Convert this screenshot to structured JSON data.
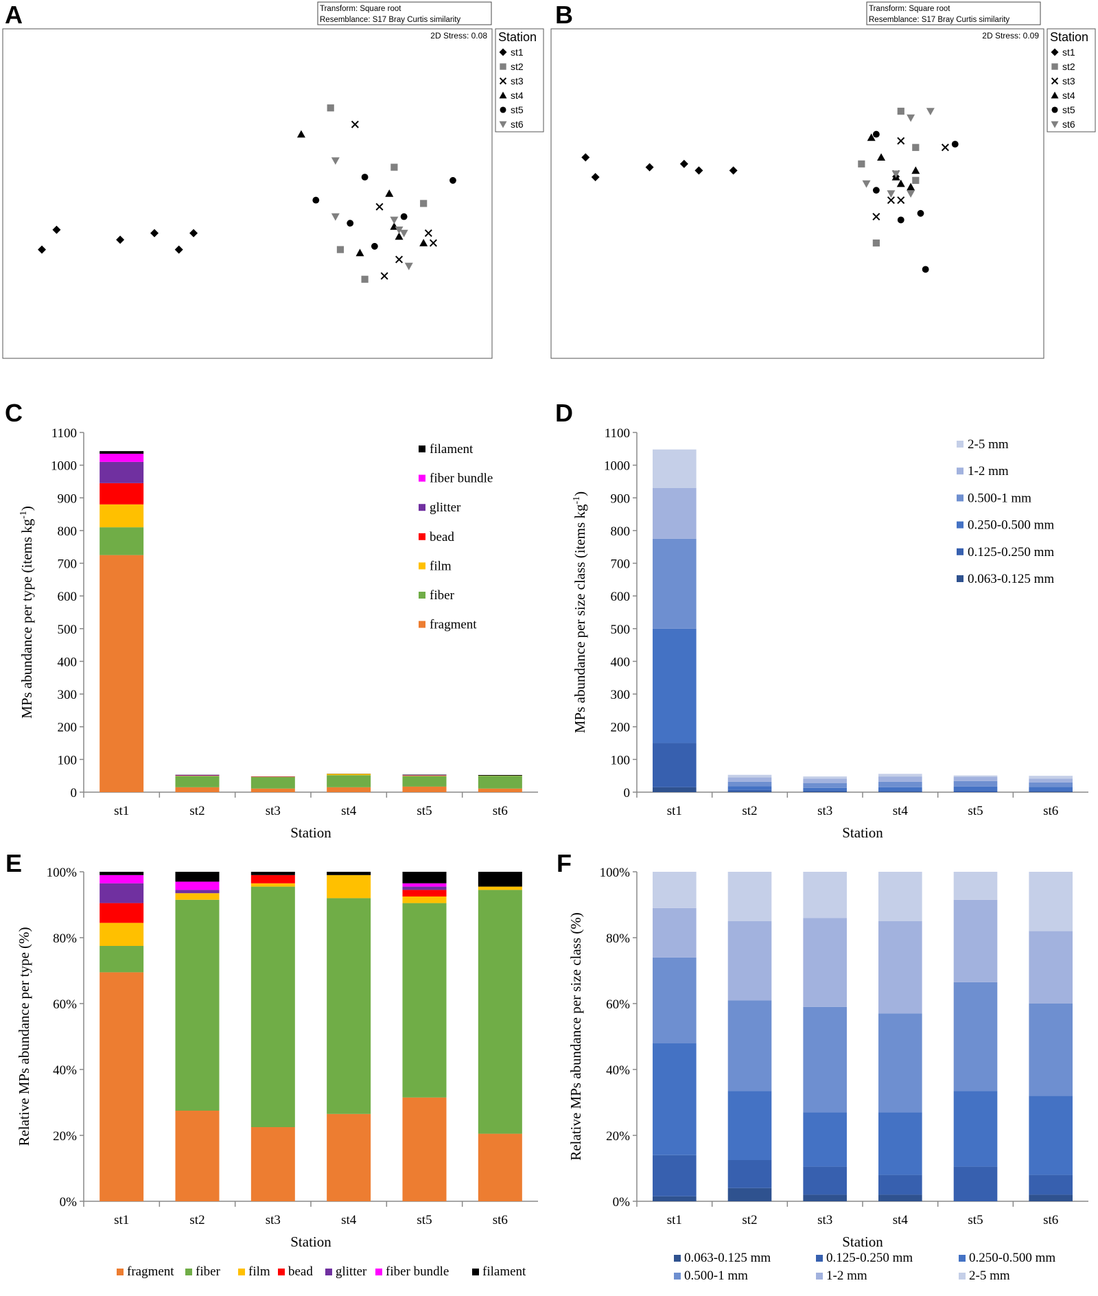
{
  "panel_labels": [
    "A",
    "B",
    "C",
    "D",
    "E",
    "F"
  ],
  "station_names": [
    "st1",
    "st2",
    "st3",
    "st4",
    "st5",
    "st6"
  ],
  "nmds": {
    "legend_title": "Station",
    "header_line1": "Transform: Square root",
    "header_line2": "Resemblance: S17 Bray Curtis similarity",
    "symbols": {
      "st1": "diamond",
      "st2": "square",
      "st3": "cross",
      "st4": "triangle",
      "st5": "circle",
      "st6": "triangle-down"
    },
    "colors": {
      "st1": "#000000",
      "st2": "#808080",
      "st3": "#000000",
      "st4": "#000000",
      "st5": "#000000",
      "st6": "#808080"
    }
  },
  "chart_data": [
    {
      "panel": "A",
      "type": "scatter",
      "title": "",
      "stress_label": "2D Stress: 0.08",
      "xlabel": "",
      "ylabel": "",
      "xlim": [
        0,
        100
      ],
      "ylim": [
        0,
        100
      ],
      "series": [
        {
          "name": "st1",
          "points": [
            [
              8,
              33
            ],
            [
              11,
              39
            ],
            [
              24,
              36
            ],
            [
              31,
              38
            ],
            [
              36,
              33
            ],
            [
              39,
              38
            ]
          ]
        },
        {
          "name": "st2",
          "points": [
            [
              67,
              76
            ],
            [
              80,
              58
            ],
            [
              86,
              47
            ],
            [
              69,
              33
            ],
            [
              74,
              24
            ]
          ]
        },
        {
          "name": "st3",
          "points": [
            [
              72,
              71
            ],
            [
              77,
              46
            ],
            [
              81,
              30
            ],
            [
              88,
              35
            ],
            [
              87,
              38
            ],
            [
              78,
              25
            ]
          ]
        },
        {
          "name": "st4",
          "points": [
            [
              61,
              68
            ],
            [
              79,
              50
            ],
            [
              80,
              40
            ],
            [
              81,
              37
            ],
            [
              73,
              32
            ],
            [
              86,
              35
            ]
          ]
        },
        {
          "name": "st5",
          "points": [
            [
              74,
              55
            ],
            [
              64,
              48
            ],
            [
              71,
              41
            ],
            [
              76,
              34
            ],
            [
              82,
              43
            ],
            [
              92,
              54
            ]
          ]
        },
        {
          "name": "st6",
          "points": [
            [
              68,
              60
            ],
            [
              68,
              43
            ],
            [
              81,
              39
            ],
            [
              82,
              38
            ],
            [
              80,
              42
            ],
            [
              83,
              28
            ]
          ]
        }
      ]
    },
    {
      "panel": "B",
      "type": "scatter",
      "title": "",
      "stress_label": "2D Stress: 0.09",
      "xlabel": "",
      "ylabel": "",
      "xlim": [
        0,
        100
      ],
      "ylim": [
        0,
        100
      ],
      "series": [
        {
          "name": "st1",
          "points": [
            [
              7,
              61
            ],
            [
              9,
              55
            ],
            [
              20,
              58
            ],
            [
              27,
              59
            ],
            [
              30,
              57
            ],
            [
              37,
              57
            ]
          ]
        },
        {
          "name": "st2",
          "points": [
            [
              71,
              75
            ],
            [
              74,
              64
            ],
            [
              63,
              59
            ],
            [
              74,
              54
            ],
            [
              66,
              35
            ]
          ]
        },
        {
          "name": "st3",
          "points": [
            [
              71,
              66
            ],
            [
              80,
              64
            ],
            [
              70,
              56
            ],
            [
              69,
              48
            ],
            [
              71,
              48
            ],
            [
              66,
              43
            ]
          ]
        },
        {
          "name": "st4",
          "points": [
            [
              65,
              67
            ],
            [
              67,
              61
            ],
            [
              70,
              55
            ],
            [
              71,
              53
            ],
            [
              74,
              57
            ],
            [
              73,
              52
            ]
          ]
        },
        {
          "name": "st5",
          "points": [
            [
              66,
              68
            ],
            [
              82,
              65
            ],
            [
              66,
              51
            ],
            [
              71,
              42
            ],
            [
              75,
              44
            ],
            [
              76,
              27
            ]
          ]
        },
        {
          "name": "st6",
          "points": [
            [
              73,
              73
            ],
            [
              77,
              75
            ],
            [
              64,
              53
            ],
            [
              70,
              56
            ],
            [
              69,
              50
            ],
            [
              73,
              50
            ]
          ]
        }
      ]
    },
    {
      "panel": "C",
      "type": "bar",
      "stacked": true,
      "title": "",
      "xlabel": "Station",
      "ylabel": "MPs abundance per type (items kg⁻¹)",
      "ylim": [
        0,
        1100
      ],
      "yticks": [
        0,
        100,
        200,
        300,
        400,
        500,
        600,
        700,
        800,
        900,
        1000,
        1100
      ],
      "categories": [
        "st1",
        "st2",
        "st3",
        "st4",
        "st5",
        "st6"
      ],
      "series": [
        {
          "name": "fragment",
          "color": "#ED7D31",
          "values": [
            725,
            15,
            11,
            15,
            17,
            11
          ]
        },
        {
          "name": "fiber",
          "color": "#70AD47",
          "values": [
            85,
            34,
            35,
            37,
            32,
            39
          ]
        },
        {
          "name": "film",
          "color": "#FFC000",
          "values": [
            70,
            1,
            0.5,
            4,
            1,
            0.5
          ]
        },
        {
          "name": "bead",
          "color": "#FF0000",
          "values": [
            65,
            0,
            1,
            0,
            1,
            0
          ]
        },
        {
          "name": "glitter",
          "color": "#7030A0",
          "values": [
            65,
            0.5,
            0,
            0,
            0.5,
            0
          ]
        },
        {
          "name": "fiber bundle",
          "color": "#FF00FF",
          "values": [
            25,
            1,
            0,
            0,
            0.5,
            0
          ]
        },
        {
          "name": "filament",
          "color": "#000000",
          "values": [
            8,
            1.5,
            0.5,
            0.5,
            1.5,
            2
          ]
        }
      ]
    },
    {
      "panel": "D",
      "type": "bar",
      "stacked": true,
      "title": "",
      "xlabel": "Station",
      "ylabel": "MPs abundance per size class (items kg⁻¹)",
      "ylim": [
        0,
        1100
      ],
      "yticks": [
        0,
        100,
        200,
        300,
        400,
        500,
        600,
        700,
        800,
        900,
        1000,
        1100
      ],
      "categories": [
        "st1",
        "st2",
        "st3",
        "st4",
        "st5",
        "st6"
      ],
      "series": [
        {
          "name": "0.063-0.125 mm",
          "color": "#2F528F",
          "values": [
            15,
            2,
            1,
            1,
            0,
            1
          ]
        },
        {
          "name": "0.125-0.250 mm",
          "color": "#3760AF",
          "values": [
            135,
            5,
            4,
            3,
            5,
            3
          ]
        },
        {
          "name": "0.250-0.500 mm",
          "color": "#4472C4",
          "values": [
            350,
            11,
            8,
            11,
            12,
            12
          ]
        },
        {
          "name": "0.500-1 mm",
          "color": "#6E8FD0",
          "values": [
            275,
            14,
            15,
            17,
            17,
            14
          ]
        },
        {
          "name": "1-2 mm",
          "color": "#A2B2DE",
          "values": [
            155,
            13,
            13,
            16,
            13,
            11
          ]
        },
        {
          "name": "2-5 mm",
          "color": "#C5CFE8",
          "values": [
            118,
            8,
            7,
            8,
            4,
            9
          ]
        }
      ]
    },
    {
      "panel": "E",
      "type": "bar",
      "stacked": true,
      "title": "",
      "xlabel": "Station",
      "ylabel": "Relative MPs abundance per type (%)",
      "ylim": [
        0,
        100
      ],
      "yticks": [
        0,
        20,
        40,
        60,
        80,
        100
      ],
      "ytick_suffix": "%",
      "categories": [
        "st1",
        "st2",
        "st3",
        "st4",
        "st5",
        "st6"
      ],
      "series": [
        {
          "name": "fragment",
          "color": "#ED7D31",
          "values": [
            69.5,
            27.5,
            22.5,
            26.5,
            31.5,
            20.5
          ]
        },
        {
          "name": "fiber",
          "color": "#70AD47",
          "values": [
            8,
            64,
            73,
            65.5,
            59,
            74
          ]
        },
        {
          "name": "film",
          "color": "#FFC000",
          "values": [
            7,
            2,
            1,
            7,
            2,
            1
          ]
        },
        {
          "name": "bead",
          "color": "#FF0000",
          "values": [
            6,
            0,
            2.5,
            0,
            2,
            0
          ]
        },
        {
          "name": "glitter",
          "color": "#7030A0",
          "values": [
            6,
            1,
            0,
            0,
            1,
            0
          ]
        },
        {
          "name": "fiber bundle",
          "color": "#FF00FF",
          "values": [
            2.5,
            2.5,
            0,
            0,
            1,
            0
          ]
        },
        {
          "name": "filament",
          "color": "#000000",
          "values": [
            1,
            3,
            1,
            1,
            3.5,
            4.5
          ]
        }
      ]
    },
    {
      "panel": "F",
      "type": "bar",
      "stacked": true,
      "title": "",
      "xlabel": "Station",
      "ylabel": "Relative MPs abundance per size class (%)",
      "ylim": [
        0,
        100
      ],
      "yticks": [
        0,
        20,
        40,
        60,
        80,
        100
      ],
      "ytick_suffix": "%",
      "categories": [
        "st1",
        "st2",
        "st3",
        "st4",
        "st5",
        "st6"
      ],
      "series": [
        {
          "name": "0.063-0.125 mm",
          "color": "#2F528F",
          "values": [
            1.5,
            4,
            2,
            2,
            0,
            2
          ]
        },
        {
          "name": "0.125-0.250 mm",
          "color": "#3760AF",
          "values": [
            12.5,
            8.5,
            8.5,
            6,
            10.5,
            6
          ]
        },
        {
          "name": "0.250-0.500 mm",
          "color": "#4472C4",
          "values": [
            34,
            21,
            16.5,
            19,
            23,
            24
          ]
        },
        {
          "name": "0.500-1 mm",
          "color": "#6E8FD0",
          "values": [
            26,
            27.5,
            32,
            30,
            33,
            28
          ]
        },
        {
          "name": "1-2 mm",
          "color": "#A2B2DE",
          "values": [
            15,
            24,
            27,
            28,
            25,
            22
          ]
        },
        {
          "name": "2-5 mm",
          "color": "#C5CFE8",
          "values": [
            11,
            15,
            14,
            15,
            8.5,
            18
          ]
        }
      ]
    }
  ]
}
